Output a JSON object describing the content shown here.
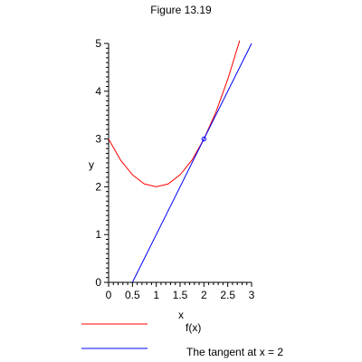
{
  "chart_data": {
    "type": "line",
    "title": "Figure 13.19",
    "xlabel": "x",
    "ylabel": "y",
    "xlim": [
      0,
      3
    ],
    "ylim": [
      0,
      5
    ],
    "x_ticks": [
      "0",
      "0.5",
      "1",
      "1.5",
      "2",
      "2.5",
      "3"
    ],
    "y_ticks": [
      "0",
      "1",
      "2",
      "3",
      "4",
      "5"
    ],
    "grid": false,
    "legend_position": "bottom",
    "series": [
      {
        "name": "f(x)",
        "color": "#ff0000",
        "x": [
          0,
          0.25,
          0.5,
          0.75,
          1,
          1.25,
          1.5,
          1.75,
          2,
          2.25,
          2.5,
          2.75
        ],
        "y": [
          3,
          2.56,
          2.25,
          2.06,
          2,
          2.06,
          2.25,
          2.56,
          3,
          3.56,
          4.25,
          5.06
        ]
      },
      {
        "name": "The tangent at x = 2",
        "color": "#0000ff",
        "x": [
          0.5,
          3
        ],
        "y": [
          0,
          5
        ]
      }
    ],
    "point": {
      "x": 2,
      "y": 3,
      "color": "#0000ff"
    }
  }
}
